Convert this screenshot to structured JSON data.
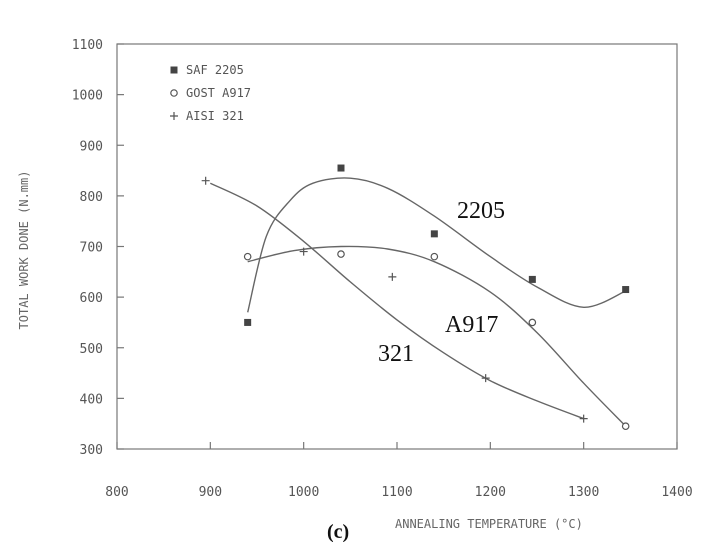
{
  "chart_data": {
    "type": "scatter",
    "title": "",
    "xlabel": "ANNEALING TEMPERATURE (°C)",
    "ylabel": "TOTAL WORK DONE (N.mm)",
    "xlim": [
      800,
      1400
    ],
    "ylim": [
      300,
      1100
    ],
    "xticks": [
      "800",
      "900",
      "1000",
      "1100",
      "1200",
      "1300",
      "1400"
    ],
    "yticks": [
      "300",
      "400",
      "500",
      "600",
      "700",
      "800",
      "900",
      "1000",
      "1100"
    ],
    "grid": false,
    "legend_position": "top-left",
    "panel_label": "(c)",
    "series": [
      {
        "name": "SAF 2205",
        "marker": "filled-square",
        "annotation": "2205",
        "points": [
          [
            940,
            550
          ],
          [
            1040,
            855
          ],
          [
            1140,
            725
          ],
          [
            1245,
            635
          ],
          [
            1345,
            615
          ]
        ],
        "curve": [
          [
            940,
            570
          ],
          [
            960,
            720
          ],
          [
            985,
            790
          ],
          [
            1010,
            825
          ],
          [
            1050,
            835
          ],
          [
            1090,
            815
          ],
          [
            1140,
            760
          ],
          [
            1200,
            680
          ],
          [
            1250,
            620
          ],
          [
            1300,
            580
          ],
          [
            1345,
            612
          ]
        ]
      },
      {
        "name": "GOST A917",
        "marker": "open-circle",
        "annotation": "A917",
        "points": [
          [
            940,
            680
          ],
          [
            1040,
            685
          ],
          [
            1140,
            680
          ],
          [
            1245,
            550
          ],
          [
            1345,
            345
          ]
        ],
        "curve": [
          [
            940,
            670
          ],
          [
            990,
            692
          ],
          [
            1040,
            700
          ],
          [
            1090,
            695
          ],
          [
            1140,
            670
          ],
          [
            1200,
            610
          ],
          [
            1250,
            530
          ],
          [
            1300,
            430
          ],
          [
            1345,
            345
          ]
        ]
      },
      {
        "name": "AISI 321",
        "marker": "plus",
        "annotation": "321",
        "points": [
          [
            895,
            830
          ],
          [
            1000,
            690
          ],
          [
            1095,
            640
          ],
          [
            1195,
            440
          ],
          [
            1300,
            360
          ]
        ],
        "curve": [
          [
            900,
            825
          ],
          [
            950,
            780
          ],
          [
            1000,
            710
          ],
          [
            1050,
            630
          ],
          [
            1100,
            555
          ],
          [
            1150,
            490
          ],
          [
            1200,
            435
          ],
          [
            1250,
            395
          ],
          [
            1300,
            360
          ]
        ]
      }
    ]
  }
}
